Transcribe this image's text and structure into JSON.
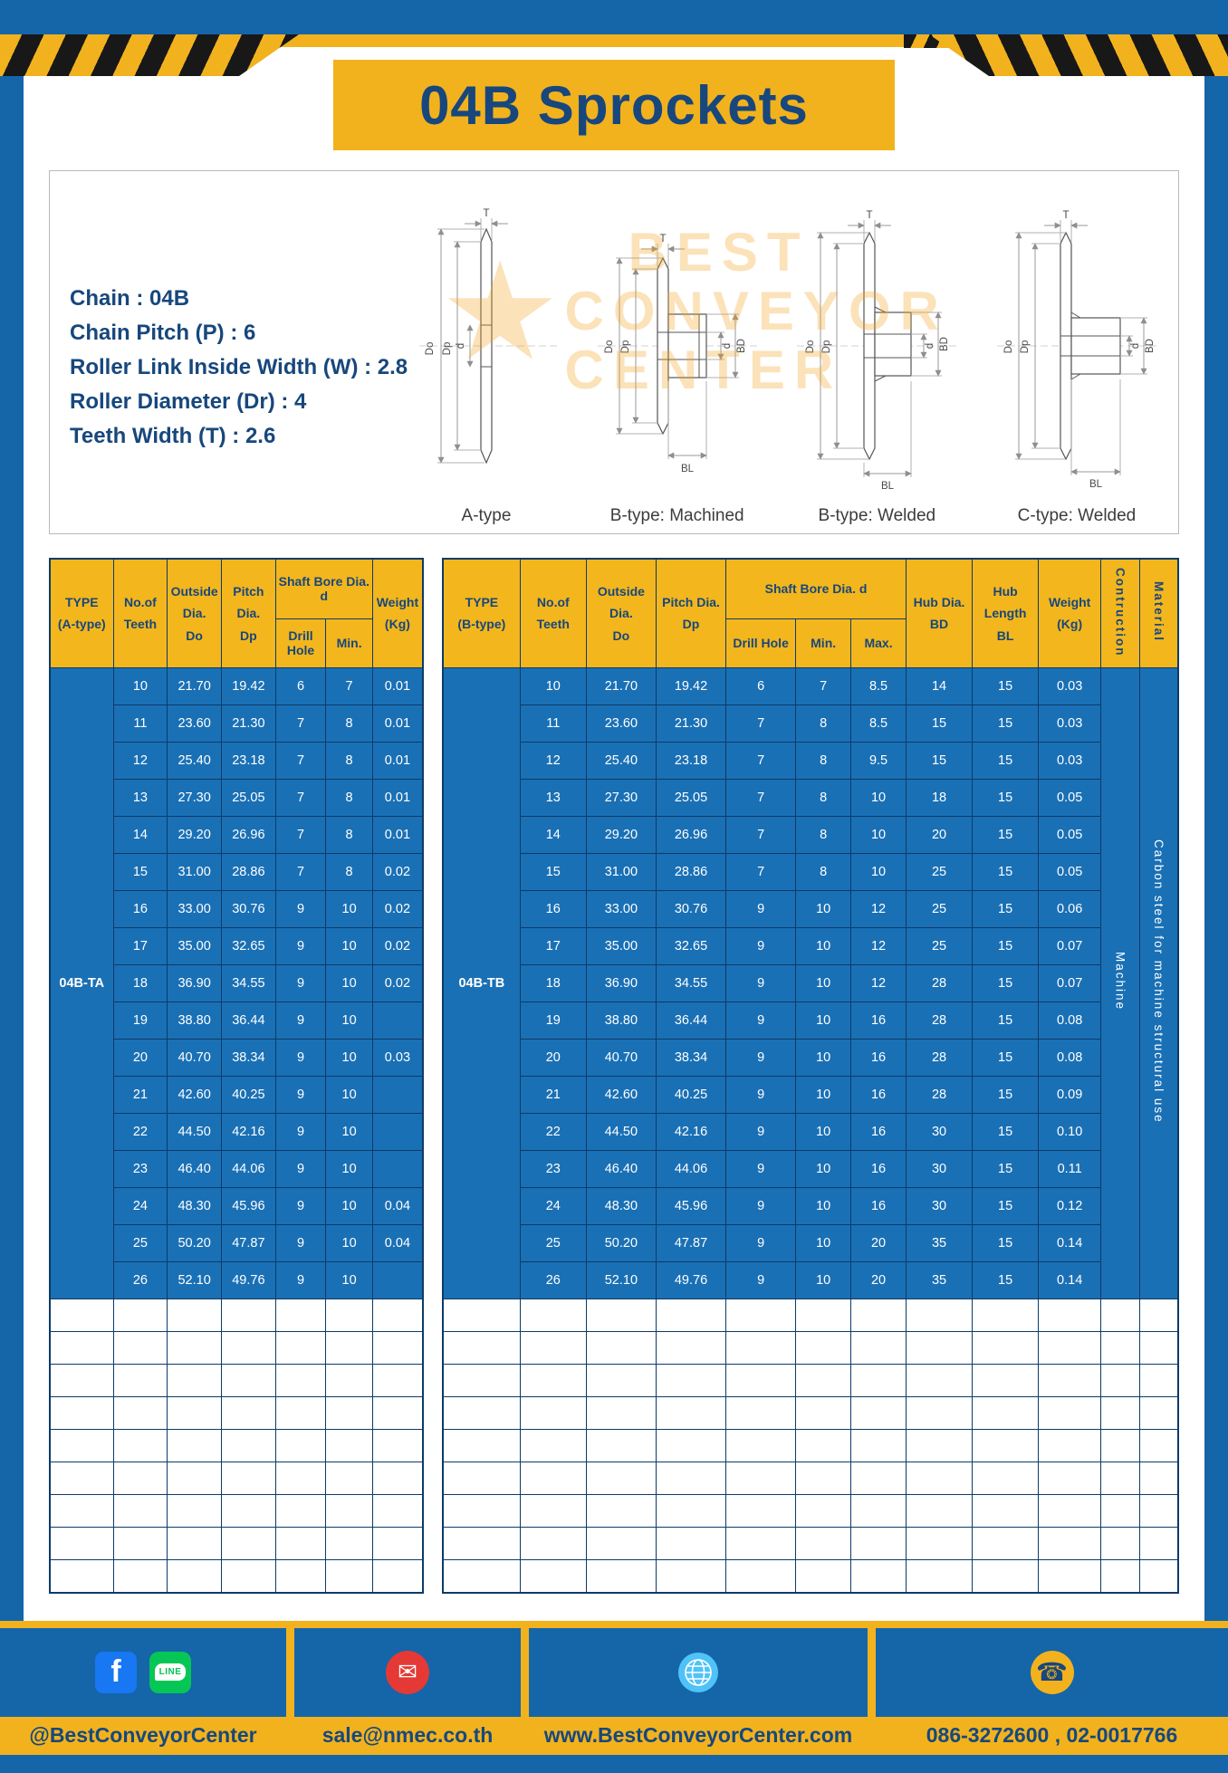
{
  "page": {
    "title": "04B Sprockets"
  },
  "specs": {
    "lines": [
      "Chain : 04B",
      "Chain Pitch (P) : 6",
      "Roller Link Inside Width (W) : 2.8",
      "Roller Diameter (Dr) : 4",
      "Teeth Width (T) : 2.6"
    ],
    "dims": {
      "T": "T",
      "Do": "Do",
      "Dp": "Dp",
      "d": "d",
      "BD": "BD",
      "BL": "BL"
    },
    "drawing_labels": [
      "A-type",
      "B-type: Machined",
      "B-type: Welded",
      "C-type: Welded"
    ],
    "watermark_lines": [
      "BEST",
      "CONVEYOR",
      "CENTER"
    ]
  },
  "table_a": {
    "headers": {
      "type_line1": "TYPE",
      "type_line2": "(A-type)",
      "teeth_line1": "No.of",
      "teeth_line2": "Teeth",
      "outside_line1": "Outside",
      "outside_line2": "Dia.",
      "outside_line3": "Do",
      "pitch_line1": "Pitch Dia.",
      "pitch_line2": "Dp",
      "shaft_bore": "Shaft Bore Dia. d",
      "drill_hole": "Drill Hole",
      "min": "Min.",
      "weight_line1": "Weight",
      "weight_line2": "(Kg)"
    },
    "type_value": "04B-TA",
    "empty_row_count": 9,
    "rows": [
      [
        "10",
        "21.70",
        "19.42",
        "6",
        "7",
        "0.01"
      ],
      [
        "11",
        "23.60",
        "21.30",
        "7",
        "8",
        "0.01"
      ],
      [
        "12",
        "25.40",
        "23.18",
        "7",
        "8",
        "0.01"
      ],
      [
        "13",
        "27.30",
        "25.05",
        "7",
        "8",
        "0.01"
      ],
      [
        "14",
        "29.20",
        "26.96",
        "7",
        "8",
        "0.01"
      ],
      [
        "15",
        "31.00",
        "28.86",
        "7",
        "8",
        "0.02"
      ],
      [
        "16",
        "33.00",
        "30.76",
        "9",
        "10",
        "0.02"
      ],
      [
        "17",
        "35.00",
        "32.65",
        "9",
        "10",
        "0.02"
      ],
      [
        "18",
        "36.90",
        "34.55",
        "9",
        "10",
        "0.02"
      ],
      [
        "19",
        "38.80",
        "36.44",
        "9",
        "10",
        ""
      ],
      [
        "20",
        "40.70",
        "38.34",
        "9",
        "10",
        "0.03"
      ],
      [
        "21",
        "42.60",
        "40.25",
        "9",
        "10",
        ""
      ],
      [
        "22",
        "44.50",
        "42.16",
        "9",
        "10",
        ""
      ],
      [
        "23",
        "46.40",
        "44.06",
        "9",
        "10",
        ""
      ],
      [
        "24",
        "48.30",
        "45.96",
        "9",
        "10",
        "0.04"
      ],
      [
        "25",
        "50.20",
        "47.87",
        "9",
        "10",
        "0.04"
      ],
      [
        "26",
        "52.10",
        "49.76",
        "9",
        "10",
        ""
      ]
    ]
  },
  "table_b": {
    "headers": {
      "type_line1": "TYPE",
      "type_line2": "(B-type)",
      "teeth_line1": "No.of",
      "teeth_line2": "Teeth",
      "outside_line1": "Outside",
      "outside_line2": "Dia.",
      "outside_line3": "Do",
      "pitch_line1": "Pitch Dia.",
      "pitch_line2": "Dp",
      "shaft_bore": "Shaft Bore Dia. d",
      "drill_hole": "Drill Hole",
      "min": "Min.",
      "max": "Max.",
      "hub_dia_line1": "Hub Dia.",
      "hub_dia_line2": "BD",
      "hub_len_line1": "Hub",
      "hub_len_line2": "Length",
      "hub_len_line3": "BL",
      "weight_line1": "Weight",
      "weight_line2": "(Kg)",
      "construction": "Contruction",
      "material": "Material"
    },
    "type_value": "04B-TB",
    "construction": "Machine",
    "material": "Carbon steel for machine structural use",
    "empty_row_count": 9,
    "rows": [
      [
        "10",
        "21.70",
        "19.42",
        "6",
        "7",
        "8.5",
        "14",
        "15",
        "0.03"
      ],
      [
        "11",
        "23.60",
        "21.30",
        "7",
        "8",
        "8.5",
        "15",
        "15",
        "0.03"
      ],
      [
        "12",
        "25.40",
        "23.18",
        "7",
        "8",
        "9.5",
        "15",
        "15",
        "0.03"
      ],
      [
        "13",
        "27.30",
        "25.05",
        "7",
        "8",
        "10",
        "18",
        "15",
        "0.05"
      ],
      [
        "14",
        "29.20",
        "26.96",
        "7",
        "8",
        "10",
        "20",
        "15",
        "0.05"
      ],
      [
        "15",
        "31.00",
        "28.86",
        "7",
        "8",
        "10",
        "25",
        "15",
        "0.05"
      ],
      [
        "16",
        "33.00",
        "30.76",
        "9",
        "10",
        "12",
        "25",
        "15",
        "0.06"
      ],
      [
        "17",
        "35.00",
        "32.65",
        "9",
        "10",
        "12",
        "25",
        "15",
        "0.07"
      ],
      [
        "18",
        "36.90",
        "34.55",
        "9",
        "10",
        "12",
        "28",
        "15",
        "0.07"
      ],
      [
        "19",
        "38.80",
        "36.44",
        "9",
        "10",
        "16",
        "28",
        "15",
        "0.08"
      ],
      [
        "20",
        "40.70",
        "38.34",
        "9",
        "10",
        "16",
        "28",
        "15",
        "0.08"
      ],
      [
        "21",
        "42.60",
        "40.25",
        "9",
        "10",
        "16",
        "28",
        "15",
        "0.09"
      ],
      [
        "22",
        "44.50",
        "42.16",
        "9",
        "10",
        "16",
        "30",
        "15",
        "0.10"
      ],
      [
        "23",
        "46.40",
        "44.06",
        "9",
        "10",
        "16",
        "30",
        "15",
        "0.11"
      ],
      [
        "24",
        "48.30",
        "45.96",
        "9",
        "10",
        "16",
        "30",
        "15",
        "0.12"
      ],
      [
        "25",
        "50.20",
        "47.87",
        "9",
        "10",
        "20",
        "35",
        "15",
        "0.14"
      ],
      [
        "26",
        "52.10",
        "49.76",
        "9",
        "10",
        "20",
        "35",
        "15",
        "0.14"
      ]
    ]
  },
  "footer": {
    "social_label": "@BestConveyorCenter",
    "email_label": "sale@nmec.co.th",
    "website_label": "www.BestConveyorCenter.com",
    "phone_label": "086-3272600 , 02-0017766",
    "facebook_glyph": "f",
    "line_icon_text": "LINE",
    "email_glyph": "✉",
    "phone_glyph": "☎"
  }
}
